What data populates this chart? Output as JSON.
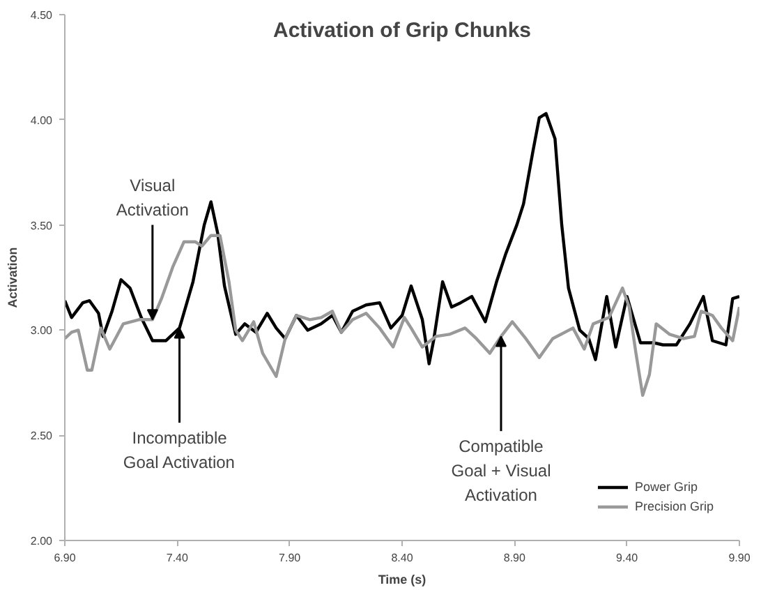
{
  "chart_data": {
    "type": "line",
    "title": "Activation of Grip Chunks",
    "xlabel": "Time (s)",
    "ylabel": "Activation",
    "xlim": [
      6.9,
      9.9
    ],
    "ylim": [
      2.0,
      4.5
    ],
    "xticks": [
      {
        "value": 6.9,
        "label": "6.90"
      },
      {
        "value": 7.4,
        "label": "7.40"
      },
      {
        "value": 7.9,
        "label": "7.90"
      },
      {
        "value": 8.4,
        "label": "8.40"
      },
      {
        "value": 8.9,
        "label": "8.90"
      },
      {
        "value": 9.4,
        "label": "9.40"
      },
      {
        "value": 9.9,
        "label": "9.90"
      }
    ],
    "yticks": [
      {
        "value": 2.0,
        "label": "2.00"
      },
      {
        "value": 2.5,
        "label": "2.50"
      },
      {
        "value": 3.0,
        "label": "3.00"
      },
      {
        "value": 3.5,
        "label": "3.50"
      },
      {
        "value": 4.0,
        "label": "4.00"
      },
      {
        "value": 4.5,
        "label": "4.50"
      }
    ],
    "grid": false,
    "legend": "bottom right",
    "line_style": "solid",
    "annotations": [
      {
        "text": "Visual\nActivation",
        "x": 7.29,
        "y": 3.05
      },
      {
        "text": "Incompatible\nGoal Activation",
        "x": 7.41,
        "y": 3.01
      },
      {
        "text": "Compatible\nGoal + Visual\nActivation",
        "x": 8.84,
        "y": 2.97
      }
    ],
    "series": [
      {
        "name": "Power Grip",
        "color": "#000000",
        "x": [
          6.9,
          6.93,
          6.98,
          7.01,
          7.05,
          7.07,
          7.11,
          7.15,
          7.19,
          7.24,
          7.29,
          7.35,
          7.41,
          7.47,
          7.52,
          7.55,
          7.58,
          7.61,
          7.66,
          7.7,
          7.75,
          7.8,
          7.84,
          7.88,
          7.93,
          7.98,
          8.04,
          8.09,
          8.13,
          8.18,
          8.24,
          8.3,
          8.35,
          8.4,
          8.44,
          8.49,
          8.52,
          8.54,
          8.58,
          8.62,
          8.66,
          8.71,
          8.77,
          8.82,
          8.86,
          8.91,
          8.94,
          8.98,
          9.01,
          9.04,
          9.08,
          9.11,
          9.14,
          9.19,
          9.23,
          9.26,
          9.31,
          9.35,
          9.4,
          9.46,
          9.52,
          9.56,
          9.62,
          9.68,
          9.74,
          9.78,
          9.84,
          9.87,
          9.9
        ],
        "values": [
          3.14,
          3.06,
          3.13,
          3.14,
          3.08,
          2.97,
          3.09,
          3.24,
          3.2,
          3.06,
          2.95,
          2.95,
          3.01,
          3.23,
          3.5,
          3.61,
          3.46,
          3.21,
          2.98,
          3.03,
          2.99,
          3.08,
          3.01,
          2.96,
          3.07,
          3.0,
          3.03,
          3.07,
          2.99,
          3.09,
          3.12,
          3.13,
          3.01,
          3.07,
          3.21,
          3.05,
          2.84,
          2.95,
          3.23,
          3.11,
          3.13,
          3.16,
          3.04,
          3.23,
          3.36,
          3.5,
          3.6,
          3.84,
          4.01,
          4.03,
          3.91,
          3.5,
          3.2,
          3.0,
          2.96,
          2.86,
          3.16,
          2.92,
          3.16,
          2.94,
          2.94,
          2.93,
          2.93,
          3.03,
          3.16,
          2.95,
          2.93,
          3.15,
          3.16
        ]
      },
      {
        "name": "Precision Grip",
        "color": "#999999",
        "x": [
          6.9,
          6.93,
          6.96,
          7.0,
          7.02,
          7.06,
          7.1,
          7.13,
          7.16,
          7.23,
          7.29,
          7.33,
          7.38,
          7.43,
          7.48,
          7.51,
          7.55,
          7.59,
          7.63,
          7.66,
          7.69,
          7.74,
          7.78,
          7.84,
          7.88,
          7.93,
          7.99,
          8.04,
          8.09,
          8.13,
          8.18,
          8.24,
          8.3,
          8.36,
          8.41,
          8.44,
          8.49,
          8.55,
          8.61,
          8.68,
          8.73,
          8.79,
          8.84,
          8.89,
          8.95,
          9.01,
          9.07,
          9.16,
          9.21,
          9.25,
          9.32,
          9.38,
          9.41,
          9.44,
          9.47,
          9.5,
          9.53,
          9.59,
          9.65,
          9.7,
          9.73,
          9.78,
          9.82,
          9.87,
          9.9
        ],
        "values": [
          2.96,
          2.99,
          3.0,
          2.81,
          2.81,
          3.01,
          2.91,
          2.97,
          3.03,
          3.05,
          3.05,
          3.15,
          3.3,
          3.42,
          3.42,
          3.4,
          3.45,
          3.45,
          3.23,
          3.0,
          2.95,
          3.04,
          2.89,
          2.78,
          2.96,
          3.07,
          3.05,
          3.06,
          3.09,
          2.99,
          3.05,
          3.08,
          3.01,
          2.92,
          3.06,
          3.01,
          2.92,
          2.97,
          2.98,
          3.01,
          2.96,
          2.89,
          2.97,
          3.04,
          2.96,
          2.87,
          2.96,
          3.01,
          2.91,
          3.03,
          3.06,
          3.2,
          3.11,
          2.89,
          2.69,
          2.79,
          3.03,
          2.98,
          2.96,
          2.97,
          3.09,
          3.07,
          3.01,
          2.95,
          3.11
        ]
      }
    ]
  }
}
